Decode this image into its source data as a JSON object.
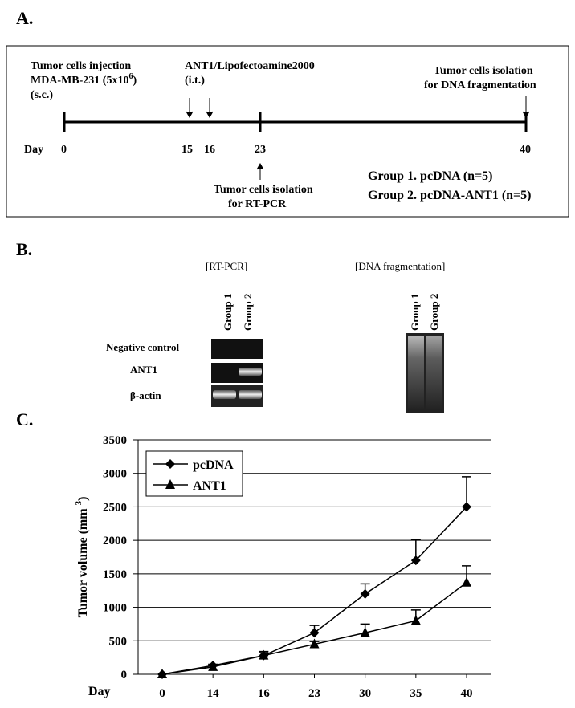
{
  "panel_a": {
    "label": "A.",
    "injection": [
      "Tumor cells injection",
      "MDA-MB-231 (5x10",
      "6",
      ")",
      "(s.c.)"
    ],
    "treatment": [
      "ANT1/Lipofectoamine2000",
      "(i.t.)"
    ],
    "isolation_dna": [
      "Tumor cells isolation",
      "for DNA fragmentation"
    ],
    "isolation_rt": [
      "Tumor cells isolation",
      "for RT-PCR"
    ],
    "day_label": "Day",
    "days": [
      "0",
      "15",
      "16",
      "23",
      "40"
    ],
    "groups": [
      "Group 1.  pcDNA (n=5)",
      "Group 2.  pcDNA-ANT1 (n=5)"
    ]
  },
  "panel_b": {
    "label": "B.",
    "rt_title": "[RT-PCR]",
    "dna_title": "[DNA fragmentation]",
    "lanes": [
      "Group 1",
      "Group 2"
    ],
    "rows": [
      "Negative control",
      "ANT1",
      "β-actin"
    ]
  },
  "chart_data": {
    "type": "line",
    "panel_label": "C.",
    "y_label_parts": [
      "Tumor volume (mm",
      "3",
      ")"
    ],
    "x_label": "Day",
    "categories": [
      "0",
      "14",
      "16",
      "23",
      "30",
      "35",
      "40"
    ],
    "series": [
      {
        "name": "pcDNA",
        "color": "#000000",
        "marker": "diamond",
        "values": [
          0,
          130,
          280,
          620,
          1200,
          1700,
          2500
        ],
        "errors": [
          0,
          20,
          60,
          110,
          150,
          310,
          450
        ]
      },
      {
        "name": "ANT1",
        "color": "#000000",
        "marker": "triangle",
        "values": [
          0,
          110,
          280,
          450,
          620,
          800,
          1370
        ],
        "errors": [
          0,
          20,
          40,
          40,
          130,
          160,
          250
        ]
      }
    ],
    "ylim": [
      0,
      3500
    ],
    "yticks": [
      0,
      500,
      1000,
      1500,
      2000,
      2500,
      3000,
      3500
    ],
    "grid": true,
    "legend": "top-left"
  }
}
